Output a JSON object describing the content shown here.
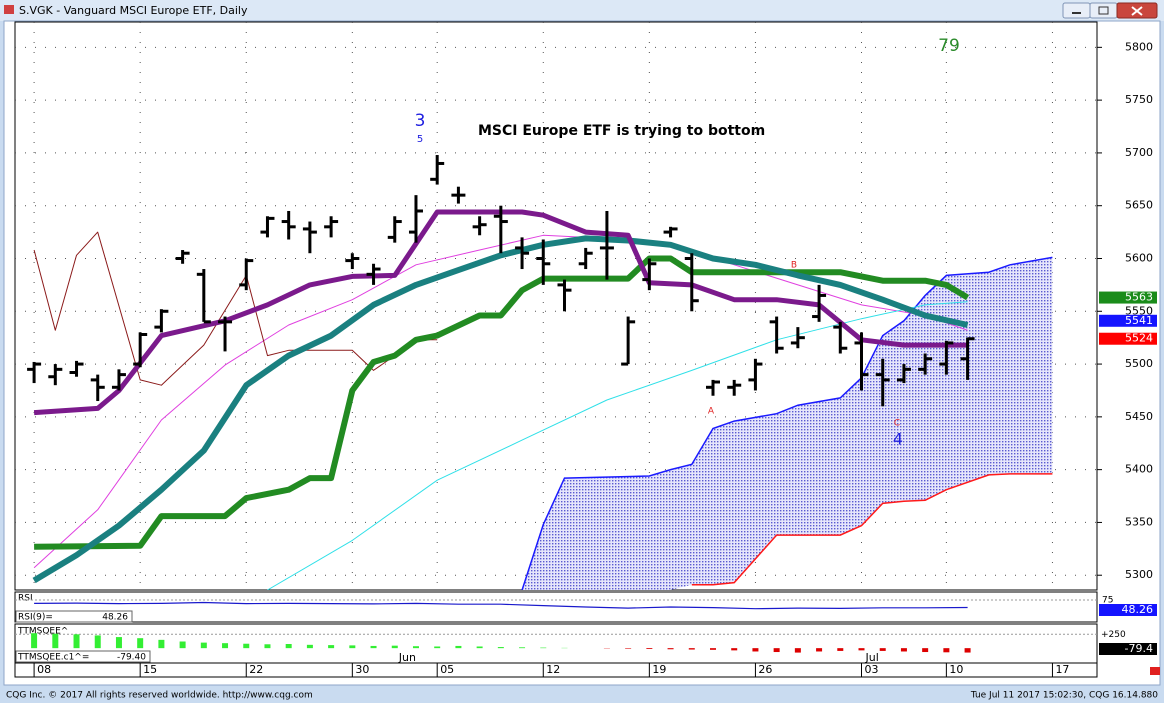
{
  "window": {
    "title": "S.VGK - Vanguard MSCI Europe ETF, Daily"
  },
  "footer": {
    "left": "CQG Inc. © 2017 All rights reserved worldwide. http://www.cqg.com",
    "right": "Tue Jul 11 2017 15:02:30, CQG 16.14.880"
  },
  "chart_data": [
    {
      "type": "ohlc",
      "annotation": "MSCI Europe ETF is trying to bottom",
      "marks": {
        "count_top": "79",
        "wave_major": "3",
        "wave_minor": "5",
        "wave_low": "4",
        "a": "A",
        "b": "B",
        "c": "C"
      },
      "xlim": [
        -0.9,
        50.1
      ],
      "xticks": [
        {
          "value": 0,
          "label": "08"
        },
        {
          "value": 5,
          "label": "15"
        },
        {
          "value": 10,
          "label": "22"
        },
        {
          "value": 15,
          "label": "30"
        },
        {
          "value": 19,
          "label": "05"
        },
        {
          "value": 24,
          "label": "12"
        },
        {
          "value": 29,
          "label": "19"
        },
        {
          "value": 34,
          "label": "26"
        },
        {
          "value": 39,
          "label": "03"
        },
        {
          "value": 43,
          "label": "10"
        },
        {
          "value": 48,
          "label": "17"
        }
      ],
      "month_ticks": [
        {
          "value": 17,
          "label": "Jun"
        },
        {
          "value": 39,
          "label": "Jul"
        }
      ],
      "ylim": [
        5286,
        5824
      ],
      "yticks": [
        5300,
        5350,
        5400,
        5450,
        5500,
        5550,
        5600,
        5650,
        5700,
        5750,
        5800
      ],
      "grid": true,
      "color": "#000000",
      "x": [
        0,
        1,
        2,
        3,
        4,
        5,
        6,
        7,
        8,
        9,
        10,
        11,
        12,
        13,
        14,
        15,
        16,
        17,
        18,
        19,
        20,
        21,
        22,
        23,
        24,
        25,
        26,
        27,
        28,
        29,
        30,
        31,
        32,
        33,
        34,
        35,
        36,
        37,
        38,
        39,
        40,
        41,
        42,
        43,
        44
      ],
      "open": [
        5495,
        5488,
        5492,
        5485,
        5478,
        5500,
        5535,
        5600,
        5585,
        5540,
        5575,
        5625,
        5635,
        5628,
        5630,
        5598,
        5585,
        5620,
        5625,
        5675,
        5660,
        5630,
        5640,
        5610,
        5600,
        5575,
        5595,
        5610,
        5500,
        5580,
        5625,
        5600,
        5478,
        5478,
        5485,
        5540,
        5520,
        5545,
        5535,
        5520,
        5490,
        5485,
        5495,
        5500,
        5505
      ],
      "high": [
        5502,
        5500,
        5503,
        5490,
        5495,
        5530,
        5552,
        5608,
        5590,
        5545,
        5600,
        5640,
        5645,
        5635,
        5640,
        5605,
        5595,
        5640,
        5660,
        5698,
        5668,
        5640,
        5650,
        5620,
        5618,
        5580,
        5610,
        5645,
        5545,
        5600,
        5630,
        5605,
        5485,
        5485,
        5505,
        5545,
        5535,
        5575,
        5540,
        5530,
        5505,
        5500,
        5510,
        5522,
        5525
      ],
      "low": [
        5482,
        5480,
        5488,
        5465,
        5475,
        5497,
        5530,
        5595,
        5540,
        5512,
        5570,
        5620,
        5618,
        5605,
        5620,
        5590,
        5575,
        5615,
        5615,
        5670,
        5652,
        5622,
        5605,
        5590,
        5575,
        5550,
        5590,
        5580,
        5500,
        5570,
        5620,
        5550,
        5470,
        5470,
        5475,
        5510,
        5515,
        5540,
        5510,
        5475,
        5460,
        5482,
        5490,
        5490,
        5485
      ],
      "close": [
        5500,
        5495,
        5500,
        5478,
        5490,
        5528,
        5550,
        5605,
        5540,
        5540,
        5598,
        5638,
        5630,
        5625,
        5635,
        5600,
        5590,
        5635,
        5645,
        5690,
        5660,
        5632,
        5635,
        5605,
        5595,
        5570,
        5605,
        5610,
        5540,
        5595,
        5628,
        5560,
        5483,
        5480,
        5500,
        5515,
        5525,
        5565,
        5515,
        5490,
        5485,
        5495,
        5505,
        5520,
        5524
      ],
      "cloud": {
        "color": "#5a5ad0",
        "upper_color": "#1a1aff",
        "lower_color": "#ff1a1a",
        "x": [
          23,
          24,
          25,
          29,
          30,
          31,
          32,
          33,
          35,
          36,
          38,
          39,
          40,
          41,
          42,
          43,
          45,
          46,
          48
        ],
        "upper": [
          5286,
          5348,
          5392,
          5394,
          5400,
          5405,
          5439,
          5446,
          5453,
          5461,
          5468,
          5487,
          5527,
          5541,
          5565,
          5584,
          5587,
          5594,
          5601
        ],
        "lower": [
          null,
          null,
          null,
          null,
          null,
          5291,
          5291,
          5293,
          5338,
          5338,
          5338,
          5347,
          5368,
          5370,
          5371,
          5381,
          5395,
          5396,
          5396
        ]
      },
      "lines": [
        {
          "color": "#e040e0",
          "width": 1,
          "x": [
            0,
            3,
            6,
            9,
            12,
            15,
            18,
            21,
            24,
            27,
            30,
            33,
            36,
            39,
            42,
            44
          ],
          "values": [
            5307,
            5362,
            5447,
            5499,
            5537,
            5561,
            5594,
            5608,
            5622,
            5619,
            5613,
            5594,
            5575,
            5556,
            5546,
            5532
          ]
        },
        {
          "color": "#30e0e8",
          "width": 1,
          "x": [
            11,
            15,
            19,
            23,
            27,
            31,
            35,
            39,
            42,
            44
          ],
          "values": [
            5286,
            5333,
            5390,
            5428,
            5466,
            5494,
            5523,
            5543,
            5556,
            5559
          ]
        },
        {
          "color": "#8b1a1a",
          "width": 1,
          "x": [
            0,
            1,
            2,
            3,
            5,
            6,
            8,
            10,
            11,
            12,
            15,
            16,
            17,
            18,
            19
          ],
          "values": [
            5608,
            5532,
            5603,
            5625,
            5485,
            5480,
            5518,
            5584,
            5508,
            5513,
            5513,
            5494,
            5508,
            5523,
            5523
          ]
        },
        {
          "color": "#228b22",
          "width": 6,
          "x": [
            0,
            5,
            6,
            9,
            10,
            12,
            13,
            14,
            15,
            16,
            17,
            18,
            19,
            21,
            22,
            23,
            24,
            28,
            29,
            30,
            31,
            35,
            38,
            40,
            42,
            43,
            44
          ],
          "values": [
            5327,
            5328,
            5356,
            5356,
            5373,
            5381,
            5392,
            5392,
            5475,
            5502,
            5508,
            5523,
            5527,
            5546,
            5546,
            5570,
            5581,
            5581,
            5600,
            5600,
            5587,
            5587,
            5587,
            5579,
            5579,
            5575,
            5563
          ]
        },
        {
          "color": "#1a8080",
          "width": 6,
          "x": [
            0,
            2,
            4,
            6,
            8,
            10,
            12,
            14,
            16,
            18,
            20,
            22,
            24,
            26,
            28,
            30,
            32,
            34,
            36,
            38,
            40,
            42,
            44
          ],
          "values": [
            5295,
            5319,
            5347,
            5381,
            5418,
            5480,
            5508,
            5527,
            5556,
            5575,
            5589,
            5603,
            5613,
            5619,
            5617,
            5613,
            5600,
            5594,
            5584,
            5575,
            5561,
            5546,
            5537
          ]
        },
        {
          "color": "#7b1a8c",
          "width": 5,
          "x": [
            0,
            3,
            4,
            6,
            9,
            11,
            13,
            15,
            17,
            19,
            21,
            23,
            24,
            26,
            28,
            29,
            31,
            33,
            35,
            37,
            39,
            41,
            43,
            44
          ],
          "values": [
            5454,
            5458,
            5475,
            5527,
            5541,
            5556,
            5575,
            5583,
            5584,
            5644,
            5644,
            5644,
            5641,
            5625,
            5622,
            5577,
            5575,
            5561,
            5561,
            5556,
            5523,
            5518,
            5518,
            5518
          ]
        }
      ],
      "last_values": [
        {
          "value": 5563,
          "color": "#1a8c1a"
        },
        {
          "value": 5541,
          "color": "#1414ff"
        },
        {
          "value": 5524,
          "color": "#ff0000"
        }
      ]
    },
    {
      "type": "line",
      "label": "RSI",
      "readout_label": "RSI(9)=",
      "readout": 48.26,
      "color": "#1a1acc",
      "ylim": [
        0,
        100
      ],
      "yticks": [
        75
      ],
      "x": [
        0,
        2,
        4,
        6,
        8,
        10,
        12,
        14,
        16,
        18,
        20,
        22,
        24,
        26,
        28,
        30,
        32,
        34,
        36,
        38,
        40,
        42,
        44
      ],
      "values": [
        63,
        64,
        62,
        63,
        66,
        62,
        63,
        62,
        61,
        63,
        60,
        60,
        55,
        50,
        46,
        50,
        48,
        44,
        46,
        45,
        47,
        47,
        48.26
      ]
    },
    {
      "type": "bar",
      "label": "TTMSQEE^",
      "readout_label": "TTMSQEE.c1^=",
      "readout": -79.4,
      "readout_printed": "-79.40",
      "positive_color": "#33ee33",
      "negative_color": "#dd0000",
      "ylim": [
        -250,
        400
      ],
      "yticks": [
        {
          "value": 250,
          "label": "+250"
        }
      ],
      "x": [
        0,
        1,
        2,
        3,
        4,
        5,
        6,
        7,
        8,
        9,
        10,
        11,
        12,
        13,
        14,
        15,
        16,
        17,
        18,
        19,
        20,
        21,
        22,
        23,
        24,
        25,
        26,
        27,
        28,
        29,
        30,
        31,
        32,
        33,
        34,
        35,
        36,
        37,
        38,
        39,
        40,
        41,
        42,
        43,
        44
      ],
      "values": [
        270,
        260,
        250,
        230,
        200,
        180,
        150,
        120,
        100,
        90,
        80,
        70,
        75,
        60,
        55,
        50,
        40,
        45,
        35,
        30,
        40,
        30,
        20,
        15,
        10,
        5,
        0,
        -5,
        -10,
        -15,
        -20,
        -25,
        -30,
        -40,
        -60,
        -70,
        -80,
        -60,
        -50,
        -40,
        -50,
        -60,
        -70,
        -75,
        -79.4
      ]
    }
  ]
}
